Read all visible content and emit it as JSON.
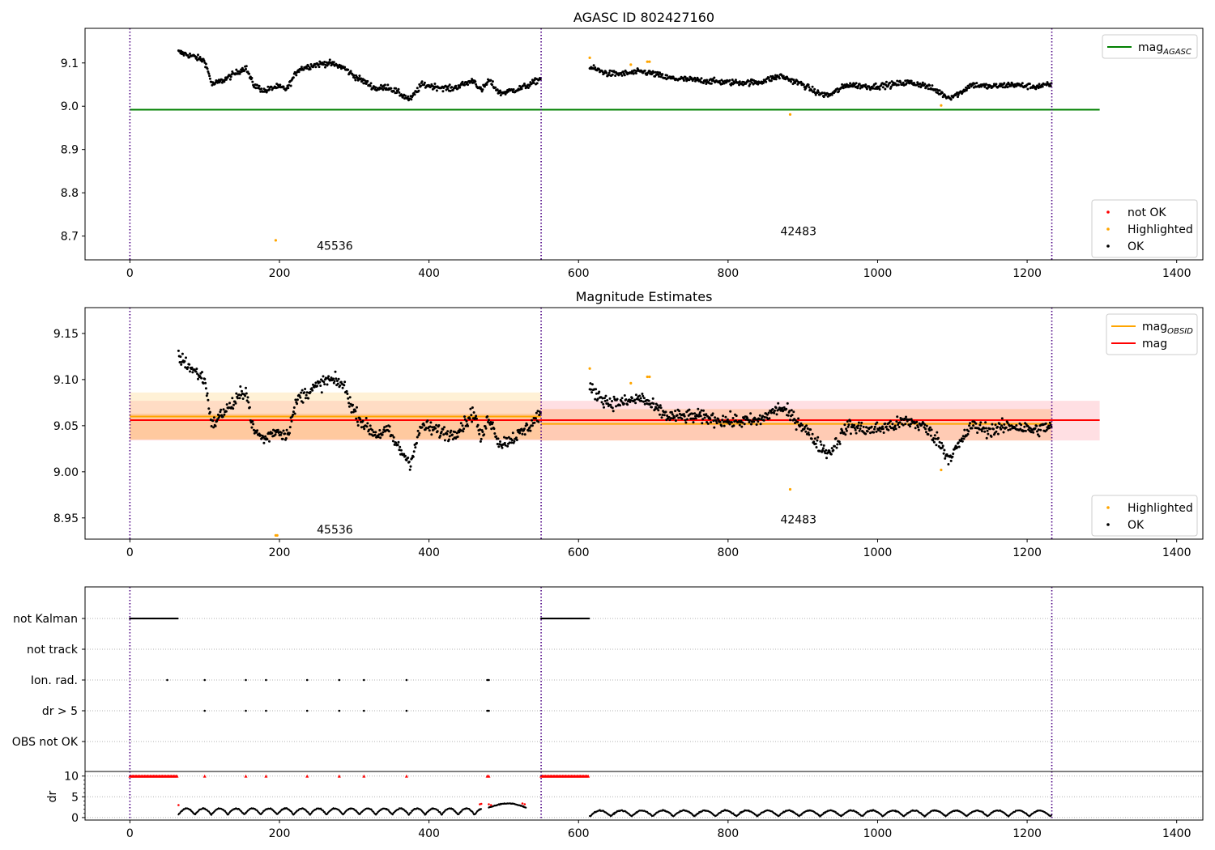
{
  "chart_data": [
    {
      "type": "scatter",
      "title": "AGASC ID 802427160",
      "xlim": [
        -60,
        1435
      ],
      "ylim": [
        8.645,
        9.18
      ],
      "x_ticks": [
        0,
        200,
        400,
        600,
        800,
        1000,
        1200,
        1400
      ],
      "x_tick_labels": [
        "0",
        "200",
        "400",
        "600",
        "800",
        "1000",
        "1200",
        "1400"
      ],
      "y_ticks": [
        8.7,
        8.8,
        8.9,
        9.0,
        9.1
      ],
      "y_tick_labels": [
        "8.7",
        "8.8",
        "8.9",
        "9.0",
        "9.1"
      ],
      "vlines": [
        0,
        550,
        1233
      ],
      "hlines": [
        {
          "name": "mag_AGASC",
          "y": 8.992,
          "x": [
            0,
            1297
          ],
          "color": "#008000"
        }
      ],
      "annotations": [
        {
          "text": "45536",
          "x": 250,
          "y": 8.668
        },
        {
          "text": "42483",
          "x": 870,
          "y": 8.702
        }
      ],
      "legends": [
        {
          "placement": "upper-right",
          "entries": [
            {
              "label": "mag",
              "sub": "AGASC",
              "color": "#008000",
              "kind": "line"
            }
          ]
        },
        {
          "placement": "lower-right",
          "entries": [
            {
              "label": "not OK",
              "color": "#ff0000",
              "kind": "dot"
            },
            {
              "label": "Highlighted",
              "color": "#ffa500",
              "kind": "dot"
            },
            {
              "label": "OK",
              "color": "#000000",
              "kind": "dot"
            }
          ]
        }
      ],
      "series": [
        {
          "name": "OK",
          "color": "#000000",
          "segments": [
            {
              "x": [
                65,
                550
              ],
              "knots": [
                [
                  65,
                  9.125
                ],
                [
                  85,
                  9.115
                ],
                [
                  100,
                  9.105
                ],
                [
                  110,
                  9.05
                ],
                [
                  125,
                  9.06
                ],
                [
                  140,
                  9.075
                ],
                [
                  155,
                  9.09
                ],
                [
                  165,
                  9.05
                ],
                [
                  180,
                  9.035
                ],
                [
                  195,
                  9.045
                ],
                [
                  210,
                  9.04
                ],
                [
                  225,
                  9.085
                ],
                [
                  245,
                  9.095
                ],
                [
                  265,
                  9.1
                ],
                [
                  285,
                  9.09
                ],
                [
                  300,
                  9.07
                ],
                [
                  315,
                  9.055
                ],
                [
                  330,
                  9.04
                ],
                [
                  345,
                  9.045
                ],
                [
                  360,
                  9.03
                ],
                [
                  375,
                  9.015
                ],
                [
                  390,
                  9.05
                ],
                [
                  410,
                  9.045
                ],
                [
                  430,
                  9.04
                ],
                [
                  445,
                  9.05
                ],
                [
                  460,
                  9.06
                ],
                [
                  470,
                  9.035
                ],
                [
                  480,
                  9.06
                ],
                [
                  495,
                  9.03
                ],
                [
                  520,
                  9.04
                ],
                [
                  535,
                  9.05
                ],
                [
                  550,
                  9.065
                ]
              ]
            },
            {
              "x": [
                615,
                1233
              ],
              "knots": [
                [
                  615,
                  9.09
                ],
                [
                  640,
                  9.075
                ],
                [
                  660,
                  9.075
                ],
                [
                  685,
                  9.08
                ],
                [
                  700,
                  9.075
                ],
                [
                  720,
                  9.065
                ],
                [
                  760,
                  9.06
                ],
                [
                  800,
                  9.055
                ],
                [
                  840,
                  9.055
                ],
                [
                  870,
                  9.07
                ],
                [
                  885,
                  9.06
                ],
                [
                  900,
                  9.05
                ],
                [
                  920,
                  9.03
                ],
                [
                  935,
                  9.025
                ],
                [
                  960,
                  9.05
                ],
                [
                  990,
                  9.045
                ],
                [
                  1020,
                  9.05
                ],
                [
                  1040,
                  9.055
                ],
                [
                  1060,
                  9.05
                ],
                [
                  1080,
                  9.035
                ],
                [
                  1095,
                  9.02
                ],
                [
                  1110,
                  9.03
                ],
                [
                  1125,
                  9.05
                ],
                [
                  1150,
                  9.045
                ],
                [
                  1180,
                  9.05
                ],
                [
                  1210,
                  9.045
                ],
                [
                  1233,
                  9.05
                ]
              ]
            }
          ]
        },
        {
          "name": "Highlighted",
          "color": "#ffa500",
          "x": [
            195,
            615,
            670,
            692,
            695,
            883,
            1085
          ],
          "y": [
            8.69,
            9.112,
            9.096,
            9.103,
            9.103,
            8.981,
            9.002
          ]
        }
      ]
    },
    {
      "type": "scatter",
      "title": "Magnitude Estimates",
      "xlim": [
        -60,
        1435
      ],
      "ylim": [
        8.927,
        9.178
      ],
      "x_ticks": [
        0,
        200,
        400,
        600,
        800,
        1000,
        1200,
        1400
      ],
      "x_tick_labels": [
        "0",
        "200",
        "400",
        "600",
        "800",
        "1000",
        "1200",
        "1400"
      ],
      "y_ticks": [
        8.95,
        9.0,
        9.05,
        9.1,
        9.15
      ],
      "y_tick_labels": [
        "8.95",
        "9.00",
        "9.05",
        "9.10",
        "9.15"
      ],
      "vlines": [
        0,
        550,
        1233
      ],
      "bands": [
        {
          "x": [
            0,
            1297
          ],
          "y": [
            9.034,
            9.077
          ],
          "color": "#ffb0b8",
          "opacity": 0.4
        },
        {
          "x": [
            0,
            550
          ],
          "y": [
            9.035,
            9.086
          ],
          "color": "#ffd88a",
          "opacity": 0.35
        },
        {
          "x": [
            0,
            550
          ],
          "y": [
            9.035,
            9.063
          ],
          "color": "#ffa04a",
          "opacity": 0.3
        },
        {
          "x": [
            550,
            1233
          ],
          "y": [
            9.034,
            9.068
          ],
          "color": "#ffa04a",
          "opacity": 0.3
        }
      ],
      "hlines": [
        {
          "name": "mag_OBSID",
          "y": 9.06,
          "x": [
            0,
            550
          ],
          "color": "#ffa500"
        },
        {
          "name": "mag_OBSID",
          "y": 9.052,
          "x": [
            550,
            1233
          ],
          "color": "#ffa500"
        },
        {
          "name": "mag",
          "y": 9.056,
          "x": [
            0,
            1297
          ],
          "color": "#ff0000"
        }
      ],
      "annotations": [
        {
          "text": "45536",
          "x": 250,
          "y": 8.933
        },
        {
          "text": "42483",
          "x": 870,
          "y": 8.944
        }
      ],
      "legends": [
        {
          "placement": "upper-right",
          "entries": [
            {
              "label": "mag",
              "sub": "OBSID",
              "color": "#ffa500",
              "kind": "line"
            },
            {
              "label": "mag",
              "sub": "",
              "color": "#ff0000",
              "kind": "line"
            }
          ]
        },
        {
          "placement": "lower-right",
          "entries": [
            {
              "label": "Highlighted",
              "color": "#ffa500",
              "kind": "dot"
            },
            {
              "label": "OK",
              "color": "#000000",
              "kind": "dot"
            }
          ]
        }
      ],
      "series": [
        {
          "name": "OK",
          "color": "#000000",
          "segments": [
            {
              "x": [
                65,
                550
              ],
              "knots": [
                [
                  65,
                  9.125
                ],
                [
                  85,
                  9.11
                ],
                [
                  100,
                  9.1
                ],
                [
                  110,
                  9.05
                ],
                [
                  125,
                  9.065
                ],
                [
                  140,
                  9.075
                ],
                [
                  155,
                  9.09
                ],
                [
                  165,
                  9.045
                ],
                [
                  180,
                  9.035
                ],
                [
                  195,
                  9.045
                ],
                [
                  210,
                  9.04
                ],
                [
                  225,
                  9.08
                ],
                [
                  245,
                  9.09
                ],
                [
                  265,
                  9.1
                ],
                [
                  285,
                  9.095
                ],
                [
                  300,
                  9.065
                ],
                [
                  315,
                  9.05
                ],
                [
                  330,
                  9.04
                ],
                [
                  345,
                  9.045
                ],
                [
                  360,
                  9.025
                ],
                [
                  375,
                  9.01
                ],
                [
                  390,
                  9.05
                ],
                [
                  410,
                  9.045
                ],
                [
                  430,
                  9.04
                ],
                [
                  445,
                  9.05
                ],
                [
                  460,
                  9.065
                ],
                [
                  470,
                  9.035
                ],
                [
                  480,
                  9.06
                ],
                [
                  495,
                  9.03
                ],
                [
                  520,
                  9.04
                ],
                [
                  535,
                  9.05
                ],
                [
                  550,
                  9.065
                ]
              ]
            },
            {
              "x": [
                615,
                1233
              ],
              "knots": [
                [
                  615,
                  9.09
                ],
                [
                  640,
                  9.075
                ],
                [
                  660,
                  9.075
                ],
                [
                  685,
                  9.08
                ],
                [
                  700,
                  9.07
                ],
                [
                  720,
                  9.06
                ],
                [
                  760,
                  9.06
                ],
                [
                  800,
                  9.055
                ],
                [
                  840,
                  9.055
                ],
                [
                  870,
                  9.07
                ],
                [
                  885,
                  9.06
                ],
                [
                  900,
                  9.05
                ],
                [
                  920,
                  9.03
                ],
                [
                  935,
                  9.02
                ],
                [
                  960,
                  9.05
                ],
                [
                  990,
                  9.045
                ],
                [
                  1020,
                  9.05
                ],
                [
                  1040,
                  9.055
                ],
                [
                  1060,
                  9.05
                ],
                [
                  1080,
                  9.035
                ],
                [
                  1095,
                  9.015
                ],
                [
                  1110,
                  9.03
                ],
                [
                  1125,
                  9.05
                ],
                [
                  1150,
                  9.045
                ],
                [
                  1180,
                  9.05
                ],
                [
                  1210,
                  9.045
                ],
                [
                  1233,
                  9.05
                ]
              ]
            }
          ]
        },
        {
          "name": "Highlighted",
          "color": "#ffa500",
          "x": [
            195,
            197,
            615,
            670,
            692,
            695,
            883,
            1085
          ],
          "y": [
            8.931,
            8.931,
            9.112,
            9.096,
            9.103,
            9.103,
            8.981,
            9.002
          ]
        }
      ]
    },
    {
      "type": "scatter",
      "xlim": [
        -60,
        1435
      ],
      "categories": [
        "not Kalman",
        "not track",
        "Ion. rad.",
        "dr > 5",
        "OBS not OK"
      ],
      "vlines": [
        0,
        550,
        1233
      ],
      "flags": [
        {
          "category": "not Kalman",
          "ranges": [
            [
              0,
              64
            ],
            [
              550,
              614
            ]
          ]
        },
        {
          "category": "Ion. rad.",
          "x": [
            50,
            100,
            155,
            182,
            237,
            280,
            313,
            370,
            478,
            480
          ]
        },
        {
          "category": "dr > 5",
          "x": [
            100,
            155,
            182,
            237,
            280,
            313,
            370,
            478,
            480
          ]
        }
      ]
    },
    {
      "type": "scatter",
      "xlim": [
        -60,
        1435
      ],
      "ylim": [
        -0.6,
        11.1
      ],
      "ylabel": "dr",
      "y_ticks": [
        0,
        5,
        10
      ],
      "y_tick_labels": [
        "0",
        "5",
        "10"
      ],
      "vlines": [
        0,
        550,
        1233
      ],
      "capped": {
        "y": 10,
        "color": "#ff0000",
        "ranges": [
          [
            0,
            64
          ],
          [
            550,
            614
          ]
        ],
        "x": [
          100,
          155,
          182,
          237,
          280,
          313,
          370,
          478,
          480
        ]
      },
      "series": [
        {
          "name": "dr",
          "color": "#000000",
          "segments": [
            {
              "x": [
                65,
                470
              ],
              "period": 22,
              "low": 0.7,
              "high": 2.2
            },
            {
              "x": [
                480,
                530
              ],
              "period": 50,
              "low": 2.4,
              "high": 3.4
            },
            {
              "x": [
                615,
                1233
              ],
              "period": 28,
              "low": 0.3,
              "high": 1.7
            }
          ]
        },
        {
          "name": "dr-red",
          "color": "#ff0000",
          "x": [
            65,
            468,
            470,
            480,
            483,
            525,
            528
          ],
          "y": [
            3.0,
            3.2,
            3.3,
            3.2,
            3.0,
            3.4,
            3.2
          ]
        }
      ]
    }
  ]
}
